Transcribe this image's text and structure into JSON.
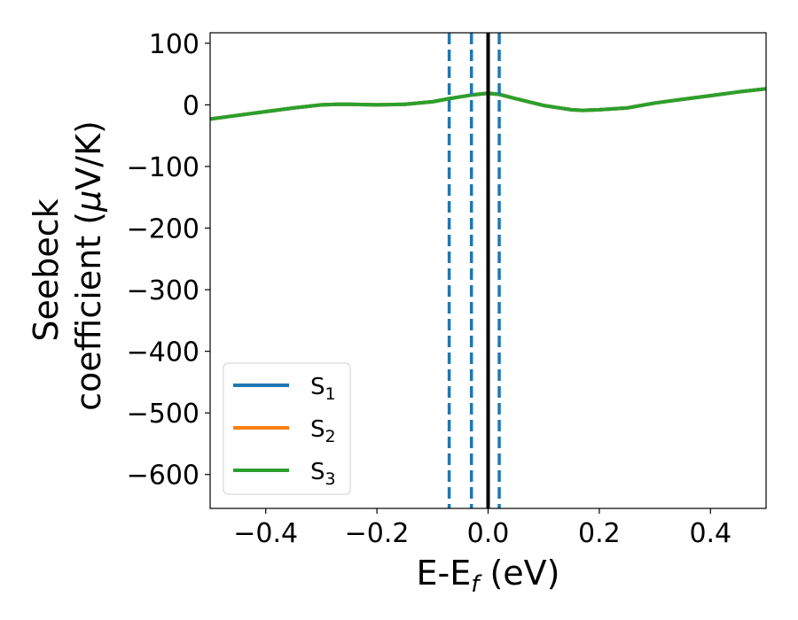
{
  "chart_data": {
    "type": "line",
    "xlabel": {
      "main": "E-E",
      "sub": "f",
      "unit": " (eV)"
    },
    "ylabel": {
      "line1": "Seebeck",
      "line2_prefix": "coefficient  (",
      "mu": "μ",
      "line2_suffix": "V/K)"
    },
    "xlim": [
      -0.5,
      0.5
    ],
    "ylim": [
      -655,
      117
    ],
    "xticks": [
      -0.4,
      -0.2,
      0.0,
      0.2,
      0.4
    ],
    "xtick_labels": [
      "−0.4",
      "−0.2",
      "0.0",
      "0.2",
      "0.4"
    ],
    "yticks": [
      100,
      0,
      -100,
      -200,
      -300,
      -400,
      -500,
      -600
    ],
    "ytick_labels": [
      "100",
      "0",
      "−100",
      "−200",
      "−300",
      "−400",
      "−500",
      "−600"
    ],
    "x": [
      -0.5,
      -0.45,
      -0.4,
      -0.35,
      -0.3,
      -0.27,
      -0.25,
      -0.2,
      -0.15,
      -0.1,
      -0.07,
      -0.05,
      -0.03,
      0.0,
      0.02,
      0.05,
      0.1,
      0.15,
      0.17,
      0.2,
      0.25,
      0.3,
      0.35,
      0.4,
      0.45,
      0.5
    ],
    "series": [
      {
        "name": "S",
        "sub": "1",
        "color": "#1f77b4",
        "values": [
          -23,
          -17,
          -11,
          -5,
          0,
          1,
          1,
          0,
          1,
          5,
          10,
          13,
          16,
          19,
          17,
          10,
          -1,
          -8,
          -9,
          -8,
          -5,
          3,
          9,
          15,
          21,
          26
        ]
      },
      {
        "name": "S",
        "sub": "2",
        "color": "#ff7f0e",
        "values": [
          -23,
          -17,
          -11,
          -5,
          0,
          1,
          1,
          0,
          1,
          5,
          10,
          13,
          16,
          19,
          17,
          10,
          -1,
          -8,
          -9,
          -8,
          -5,
          3,
          9,
          15,
          21,
          26
        ]
      },
      {
        "name": "S",
        "sub": "3",
        "color": "#2ca02c",
        "values": [
          -23,
          -17,
          -11,
          -5,
          0,
          1,
          1,
          0,
          1,
          5,
          10,
          13,
          16,
          19,
          17,
          10,
          -1,
          -8,
          -9,
          -8,
          -5,
          3,
          9,
          15,
          21,
          26
        ]
      }
    ],
    "vlines": [
      {
        "x": 0.0,
        "color": "#000000",
        "style": "solid"
      },
      {
        "x": -0.07,
        "color": "#1f77b4",
        "style": "dashed"
      },
      {
        "x": -0.03,
        "color": "#1f77b4",
        "style": "dashed"
      },
      {
        "x": 0.02,
        "color": "#1f77b4",
        "style": "dashed"
      }
    ],
    "legend": {
      "placement": "lower-left"
    },
    "grid": false
  }
}
